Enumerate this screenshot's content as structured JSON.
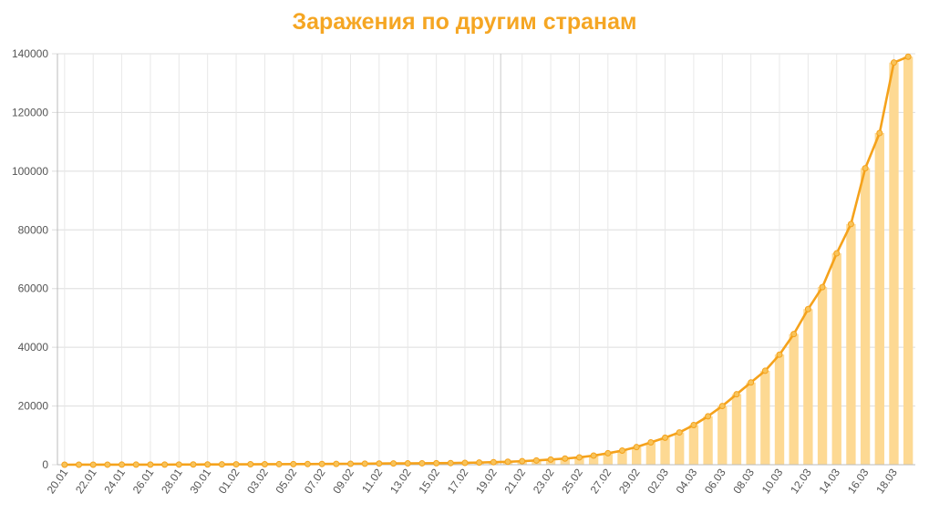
{
  "chart_data": {
    "type": "bar",
    "title": "Заражения по другим странам",
    "xlabel": "",
    "ylabel": "",
    "ylim": [
      0,
      140000
    ],
    "yticks": [
      "0",
      "20000",
      "40000",
      "60000",
      "80000",
      "100000",
      "120000",
      "140000"
    ],
    "grid": true,
    "colors": {
      "title": "#f5a623",
      "line": "#f5a21b",
      "bar": "#fdd993",
      "grid": "#dddddd"
    },
    "categories": [
      "20.01",
      "21.01",
      "22.01",
      "23.01",
      "24.01",
      "25.01",
      "26.01",
      "27.01",
      "28.01",
      "29.01",
      "30.01",
      "31.01",
      "01.02",
      "02.02",
      "03.02",
      "04.02",
      "05.02",
      "06.02",
      "07.02",
      "08.02",
      "09.02",
      "10.02",
      "11.02",
      "12.02",
      "13.02",
      "14.02",
      "15.02",
      "16.02",
      "17.02",
      "18.02",
      "19.02",
      "20.02",
      "21.02",
      "22.02",
      "23.02",
      "24.02",
      "25.02",
      "26.02",
      "27.02",
      "28.02",
      "29.02",
      "01.03",
      "02.03",
      "03.03",
      "04.03",
      "05.03",
      "06.03",
      "07.03",
      "08.03",
      "09.03",
      "10.03",
      "11.03",
      "12.03",
      "13.03",
      "14.03",
      "15.03",
      "16.03",
      "17.03",
      "18.03",
      "19.03"
    ],
    "tick_labels": [
      "20.01",
      "22.01",
      "24.01",
      "26.01",
      "28.01",
      "30.01",
      "01.02",
      "03.02",
      "05.02",
      "07.02",
      "09.02",
      "11.02",
      "13.02",
      "15.02",
      "17.02",
      "19.02",
      "21.02",
      "23.02",
      "25.02",
      "27.02",
      "29.02",
      "02.03",
      "04.03",
      "06.03",
      "08.03",
      "10.03",
      "12.03",
      "14.03",
      "16.03",
      "18.03"
    ],
    "series": [
      {
        "type": "bar",
        "values": [
          4,
          6,
          9,
          15,
          20,
          25,
          30,
          40,
          55,
          70,
          85,
          100,
          130,
          150,
          160,
          180,
          200,
          220,
          250,
          280,
          320,
          350,
          400,
          430,
          450,
          480,
          510,
          560,
          630,
          740,
          870,
          1000,
          1200,
          1450,
          1750,
          2100,
          2500,
          3100,
          3900,
          4800,
          6000,
          7600,
          9200,
          11000,
          13500,
          16500,
          20000,
          24000,
          28000,
          32000,
          37500,
          44500,
          53000,
          60500,
          72000,
          82000,
          101000,
          113000,
          137000,
          139000
        ]
      },
      {
        "type": "line",
        "values": [
          4,
          6,
          9,
          15,
          20,
          25,
          30,
          40,
          55,
          70,
          85,
          100,
          130,
          150,
          160,
          180,
          200,
          220,
          250,
          280,
          320,
          350,
          400,
          430,
          450,
          480,
          510,
          560,
          630,
          740,
          870,
          1000,
          1200,
          1450,
          1750,
          2100,
          2500,
          3100,
          3900,
          4800,
          6000,
          7600,
          9200,
          11000,
          13500,
          16500,
          20000,
          24000,
          28000,
          32000,
          37500,
          44500,
          53000,
          60500,
          72000,
          82000,
          101000,
          113000,
          137000,
          139000
        ]
      }
    ]
  }
}
